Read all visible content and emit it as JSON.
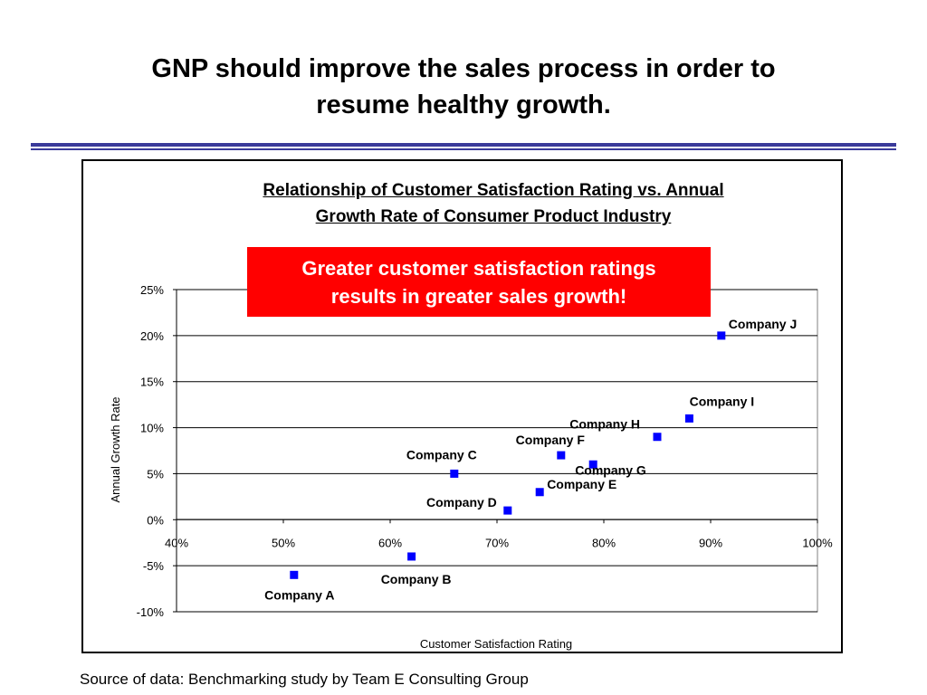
{
  "slide": {
    "title_line1": "GNP should improve the sales process in order to",
    "title_line2": "resume healthy growth.",
    "callout_line1": "Greater customer satisfaction ratings",
    "callout_line2": "results in greater sales growth!",
    "source": "Source of data: Benchmarking study by Team E Consulting Group"
  },
  "chart_data": {
    "type": "scatter",
    "title_line1": "Relationship of Customer Satisfaction Rating vs. Annual",
    "title_line2": "Growth Rate of Consumer Product Industry",
    "xlabel": "Customer Satisfaction Rating",
    "ylabel": "Annual Growth Rate",
    "xlim": [
      40,
      100
    ],
    "ylim": [
      -10,
      25
    ],
    "x_ticks": [
      40,
      50,
      60,
      70,
      80,
      90,
      100
    ],
    "y_ticks": [
      -10,
      -5,
      0,
      5,
      10,
      15,
      20,
      25
    ],
    "x_tick_labels": [
      "40%",
      "50%",
      "60%",
      "70%",
      "80%",
      "90%",
      "100%"
    ],
    "y_tick_labels": [
      "-10%",
      "-5%",
      "0%",
      "5%",
      "10%",
      "15%",
      "20%",
      "25%"
    ],
    "grid": "horizontal",
    "marker_color": "#0000ff",
    "points": [
      {
        "label": "Company A",
        "x": 51,
        "y": -6
      },
      {
        "label": "Company B",
        "x": 62,
        "y": -4
      },
      {
        "label": "Company C",
        "x": 66,
        "y": 5
      },
      {
        "label": "Company D",
        "x": 71,
        "y": 1
      },
      {
        "label": "Company E",
        "x": 74,
        "y": 3
      },
      {
        "label": "Company F",
        "x": 76,
        "y": 7
      },
      {
        "label": "Company G",
        "x": 79,
        "y": 6
      },
      {
        "label": "Company H",
        "x": 85,
        "y": 9
      },
      {
        "label": "Company I",
        "x": 88,
        "y": 11
      },
      {
        "label": "Company J",
        "x": 91,
        "y": 20
      }
    ]
  }
}
